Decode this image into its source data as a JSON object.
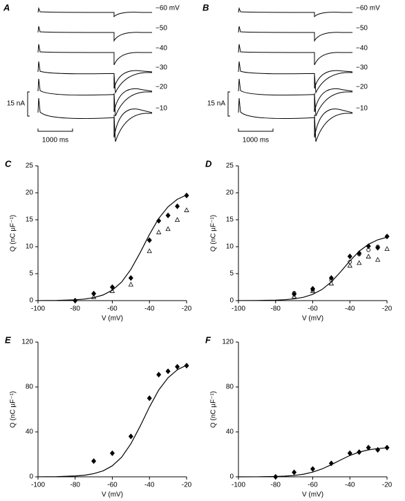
{
  "chart_data": [
    {
      "type": "traces",
      "title": "A",
      "labels": [
        "−60 mV",
        "−50",
        "−40",
        "−30",
        "−20",
        "−10"
      ],
      "scale_y": "15 nA",
      "scale_x": "1000 ms"
    },
    {
      "type": "traces",
      "title": "B",
      "labels": [
        "−60 mV",
        "−50",
        "−40",
        "−30",
        "−20",
        "−10"
      ],
      "scale_y": "15 nA",
      "scale_x": "1000 ms"
    },
    {
      "type": "scatter",
      "title": "C",
      "xlabel": "V (mV)",
      "ylabel": "Q (nC µF⁻¹)",
      "xlim": [
        -100,
        -20
      ],
      "xticks": [
        -100,
        -80,
        -60,
        -40,
        -20
      ],
      "ylim": [
        0,
        25
      ],
      "yticks": [
        0,
        5,
        10,
        15,
        20,
        25
      ],
      "series": [
        {
          "marker": "diamond",
          "filled": true,
          "color": "#000",
          "x": [
            -80,
            -70,
            -60,
            -50,
            -40,
            -35,
            -30,
            -25,
            -20
          ],
          "values": [
            0,
            1.3,
            2.5,
            4.2,
            11.2,
            14.8,
            15.8,
            17.5,
            19.5
          ]
        },
        {
          "marker": "triangle",
          "filled": false,
          "color": "#000",
          "x": [
            -70,
            -60,
            -50,
            -40,
            -35,
            -30,
            -25,
            -20
          ],
          "values": [
            0.7,
            1.8,
            3,
            9.2,
            12.7,
            13.3,
            15,
            16.8
          ]
        },
        {
          "marker": "line",
          "color": "#000",
          "x": [
            -100,
            -90,
            -80,
            -75,
            -70,
            -65,
            -60,
            -55,
            -50,
            -45,
            -40,
            -35,
            -30,
            -25,
            -20
          ],
          "values": [
            0.01,
            0.04,
            0.15,
            0.28,
            0.55,
            1.04,
            1.93,
            3.44,
            5.79,
            8.9,
            12.27,
            15.25,
            17.4,
            18.8,
            19.6
          ]
        }
      ]
    },
    {
      "type": "scatter",
      "title": "D",
      "xlabel": "V (mV)",
      "ylabel": "Q (nC µF⁻¹)",
      "xlim": [
        -100,
        -20
      ],
      "xticks": [
        -100,
        -80,
        -60,
        -40,
        -20
      ],
      "ylim": [
        0,
        25
      ],
      "yticks": [
        0,
        5,
        10,
        15,
        20,
        25
      ],
      "series": [
        {
          "marker": "diamond",
          "filled": true,
          "color": "#000",
          "x": [
            -70,
            -60,
            -50,
            -40,
            -35,
            -30,
            -25,
            -20
          ],
          "values": [
            1.2,
            2.2,
            4.2,
            8.2,
            8.8,
            10.1,
            9.8,
            11.9
          ]
        },
        {
          "marker": "circle",
          "filled": false,
          "color": "#000",
          "x": [
            -70,
            -60,
            -50,
            -40,
            -35,
            -30,
            -25
          ],
          "values": [
            1.4,
            2,
            3.8,
            7.2,
            8.6,
            9.4,
            10
          ]
        },
        {
          "marker": "triangle",
          "filled": false,
          "color": "#000",
          "x": [
            -70,
            -60,
            -50,
            -40,
            -35,
            -30,
            -25,
            -20
          ],
          "values": [
            0.8,
            1.8,
            3.2,
            6.5,
            7,
            8.2,
            7.6,
            9.6
          ]
        },
        {
          "marker": "line",
          "color": "#000",
          "x": [
            -100,
            -90,
            -80,
            -75,
            -70,
            -65,
            -60,
            -55,
            -50,
            -45,
            -40,
            -35,
            -30,
            -25,
            -20
          ],
          "values": [
            0.01,
            0.02,
            0.09,
            0.17,
            0.33,
            0.62,
            1.16,
            2.06,
            3.47,
            5.34,
            7.36,
            9.15,
            10.44,
            11.28,
            11.76
          ]
        }
      ]
    },
    {
      "type": "scatter",
      "title": "E",
      "xlabel": "V (mV)",
      "ylabel": "Q (nC µF⁻¹)",
      "xlim": [
        -100,
        -20
      ],
      "xticks": [
        -100,
        -80,
        -60,
        -40,
        -20
      ],
      "ylim": [
        0,
        120
      ],
      "yticks": [
        0,
        40,
        80,
        120
      ],
      "series": [
        {
          "marker": "diamond",
          "filled": true,
          "color": "#000",
          "x": [
            -70,
            -60,
            -50,
            -40,
            -35,
            -30,
            -25,
            -20
          ],
          "values": [
            14,
            21,
            36,
            70,
            91,
            94,
            98,
            99
          ]
        },
        {
          "marker": "line",
          "color": "#000",
          "x": [
            -100,
            -90,
            -80,
            -75,
            -70,
            -65,
            -60,
            -55,
            -50,
            -45,
            -40,
            -35,
            -30,
            -25,
            -20
          ],
          "values": [
            0.05,
            0.2,
            0.76,
            1.4,
            2.8,
            5.3,
            9.8,
            17.4,
            29.4,
            45.1,
            62.2,
            77.3,
            88.2,
            95.3,
            99.4
          ]
        }
      ]
    },
    {
      "type": "scatter",
      "title": "F",
      "xlabel": "V (mV)",
      "ylabel": "Q (nC µF⁻¹)",
      "xlim": [
        -100,
        -20
      ],
      "xticks": [
        -100,
        -80,
        -60,
        -40,
        -20
      ],
      "ylim": [
        0,
        120
      ],
      "yticks": [
        0,
        40,
        80,
        120
      ],
      "series": [
        {
          "marker": "diamond",
          "filled": true,
          "color": "#000",
          "x": [
            -80,
            -70,
            -60,
            -50,
            -40,
            -35,
            -30,
            -25,
            -20
          ],
          "values": [
            0,
            4,
            7,
            12,
            21,
            22,
            26,
            24,
            26
          ]
        },
        {
          "marker": "line",
          "color": "#000",
          "x": [
            -100,
            -90,
            -80,
            -75,
            -70,
            -65,
            -60,
            -55,
            -50,
            -45,
            -40,
            -35,
            -30,
            -25,
            -20
          ],
          "values": [
            0,
            0.05,
            0.3,
            0.6,
            1.2,
            2.3,
            4.2,
            7,
            10.8,
            15,
            19,
            22,
            24,
            25.2,
            25.8
          ]
        }
      ]
    }
  ]
}
